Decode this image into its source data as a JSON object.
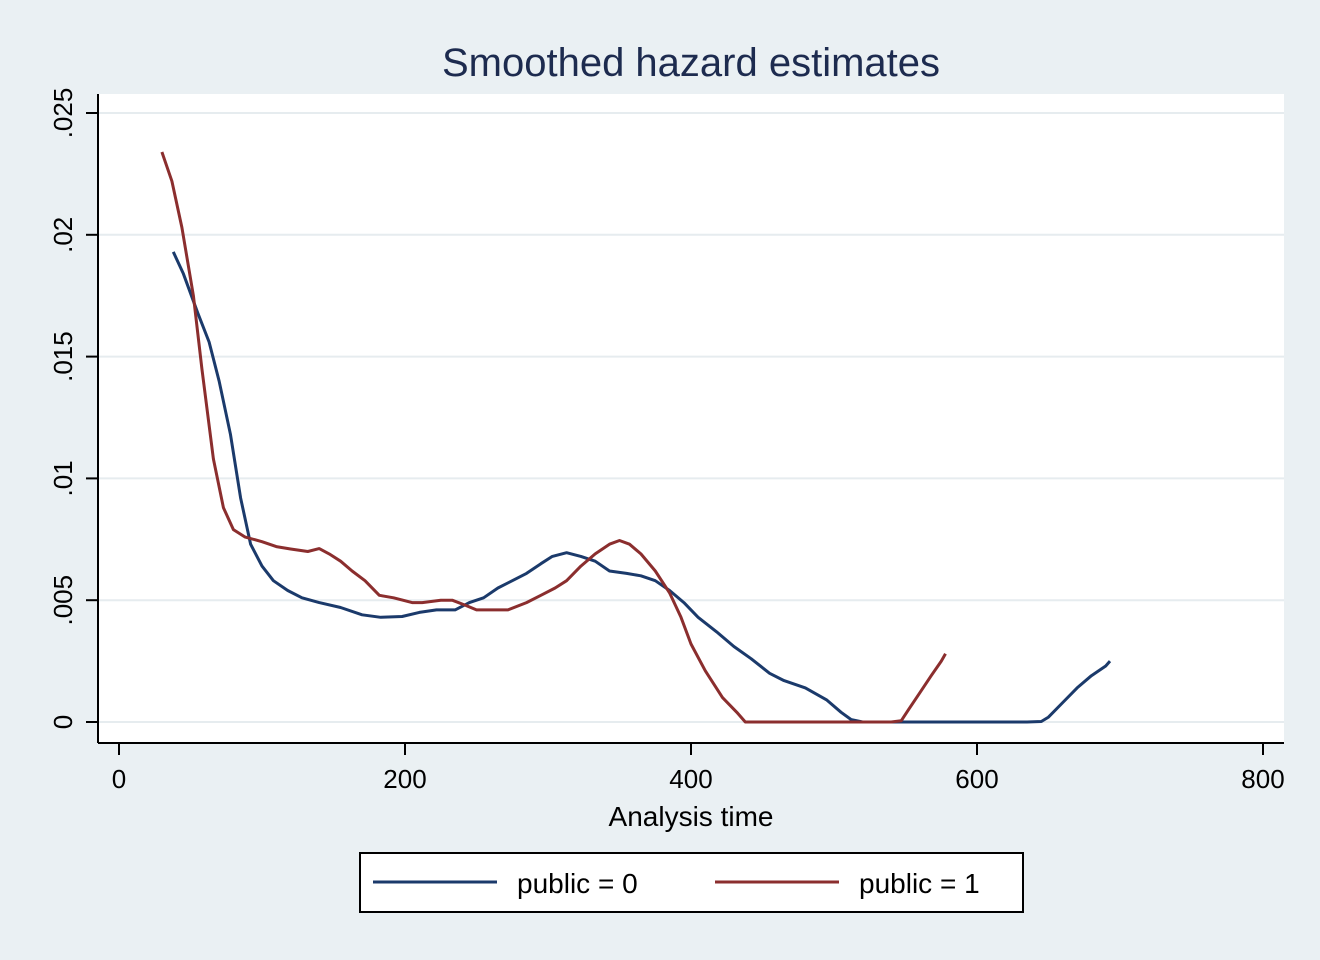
{
  "chart_data": {
    "type": "line",
    "title": "Smoothed hazard estimates",
    "xlabel": "Analysis time",
    "ylabel": "",
    "xlim": [
      0,
      800
    ],
    "ylim": [
      0,
      0.025
    ],
    "x_ticks": [
      0,
      200,
      400,
      600,
      800
    ],
    "x_tick_labels": [
      "0",
      "200",
      "400",
      "600",
      "800"
    ],
    "y_ticks": [
      0,
      0.005,
      0.01,
      0.015,
      0.02,
      0.025
    ],
    "y_tick_labels": [
      "0",
      ".005",
      ".01",
      ".015",
      ".02",
      ".025"
    ],
    "grid": true,
    "legend_position": "bottom",
    "colors": {
      "plot_bg": "#ffffff",
      "page_bg": "#eaf0f3",
      "grid": "#e6ecef",
      "title": "#1d2b4f"
    },
    "series": [
      {
        "name": "public = 0",
        "color": "#1b3a6b",
        "points": [
          [
            38,
            0.0193
          ],
          [
            45,
            0.0184
          ],
          [
            55,
            0.0168
          ],
          [
            63,
            0.0156
          ],
          [
            70,
            0.014
          ],
          [
            78,
            0.0118
          ],
          [
            85,
            0.0092
          ],
          [
            92,
            0.0073
          ],
          [
            100,
            0.0064
          ],
          [
            108,
            0.0058
          ],
          [
            118,
            0.0054
          ],
          [
            128,
            0.0051
          ],
          [
            140,
            0.0049
          ],
          [
            155,
            0.0047
          ],
          [
            170,
            0.0044
          ],
          [
            183,
            0.0043
          ],
          [
            198,
            0.00433
          ],
          [
            210,
            0.0045
          ],
          [
            222,
            0.0046
          ],
          [
            235,
            0.0046
          ],
          [
            245,
            0.0049
          ],
          [
            255,
            0.0051
          ],
          [
            265,
            0.0055
          ],
          [
            275,
            0.0058
          ],
          [
            285,
            0.0061
          ],
          [
            295,
            0.0065
          ],
          [
            303,
            0.0068
          ],
          [
            313,
            0.00695
          ],
          [
            323,
            0.0068
          ],
          [
            333,
            0.0066
          ],
          [
            343,
            0.0062
          ],
          [
            355,
            0.0061
          ],
          [
            365,
            0.006
          ],
          [
            375,
            0.0058
          ],
          [
            385,
            0.0054
          ],
          [
            395,
            0.0049
          ],
          [
            405,
            0.0043
          ],
          [
            418,
            0.0037
          ],
          [
            430,
            0.0031
          ],
          [
            442,
            0.0026
          ],
          [
            455,
            0.002
          ],
          [
            465,
            0.0017
          ],
          [
            480,
            0.0014
          ],
          [
            495,
            0.0009
          ],
          [
            505,
            0.0004
          ],
          [
            512,
            0.0001
          ],
          [
            520,
            0
          ],
          [
            540,
            0
          ],
          [
            560,
            0
          ],
          [
            580,
            0
          ],
          [
            600,
            0
          ],
          [
            620,
            0
          ],
          [
            635,
            0
          ],
          [
            645,
            2e-05
          ],
          [
            650,
            0.0002
          ],
          [
            660,
            0.0008
          ],
          [
            670,
            0.0014
          ],
          [
            680,
            0.0019
          ],
          [
            690,
            0.0023
          ],
          [
            693,
            0.0025
          ]
        ]
      },
      {
        "name": "public = 1",
        "color": "#8b2e2e",
        "points": [
          [
            30,
            0.0234
          ],
          [
            37,
            0.0222
          ],
          [
            44,
            0.0203
          ],
          [
            52,
            0.0175
          ],
          [
            58,
            0.0145
          ],
          [
            66,
            0.0108
          ],
          [
            73,
            0.0088
          ],
          [
            80,
            0.0079
          ],
          [
            88,
            0.0076
          ],
          [
            100,
            0.0074
          ],
          [
            110,
            0.0072
          ],
          [
            120,
            0.0071
          ],
          [
            132,
            0.007
          ],
          [
            140,
            0.00712
          ],
          [
            147,
            0.0069
          ],
          [
            155,
            0.0066
          ],
          [
            163,
            0.0062
          ],
          [
            172,
            0.0058
          ],
          [
            182,
            0.0052
          ],
          [
            192,
            0.0051
          ],
          [
            205,
            0.0049
          ],
          [
            212,
            0.0049
          ],
          [
            225,
            0.005
          ],
          [
            233,
            0.005
          ],
          [
            242,
            0.0048
          ],
          [
            250,
            0.0046
          ],
          [
            262,
            0.0046
          ],
          [
            272,
            0.0046
          ],
          [
            285,
            0.0049
          ],
          [
            295,
            0.0052
          ],
          [
            305,
            0.0055
          ],
          [
            313,
            0.0058
          ],
          [
            323,
            0.0064
          ],
          [
            333,
            0.0069
          ],
          [
            343,
            0.0073
          ],
          [
            350,
            0.00745
          ],
          [
            357,
            0.0073
          ],
          [
            365,
            0.0069
          ],
          [
            375,
            0.0062
          ],
          [
            385,
            0.0053
          ],
          [
            393,
            0.0043
          ],
          [
            400,
            0.0032
          ],
          [
            410,
            0.0021
          ],
          [
            422,
            0.001
          ],
          [
            432,
            0.0004
          ],
          [
            438,
            0
          ],
          [
            460,
            0
          ],
          [
            480,
            0
          ],
          [
            500,
            0
          ],
          [
            520,
            0
          ],
          [
            540,
            0
          ],
          [
            547,
            5e-05
          ],
          [
            552,
            0.0005
          ],
          [
            560,
            0.0012
          ],
          [
            568,
            0.0019
          ],
          [
            575,
            0.0025
          ],
          [
            578,
            0.0028
          ]
        ]
      }
    ]
  }
}
